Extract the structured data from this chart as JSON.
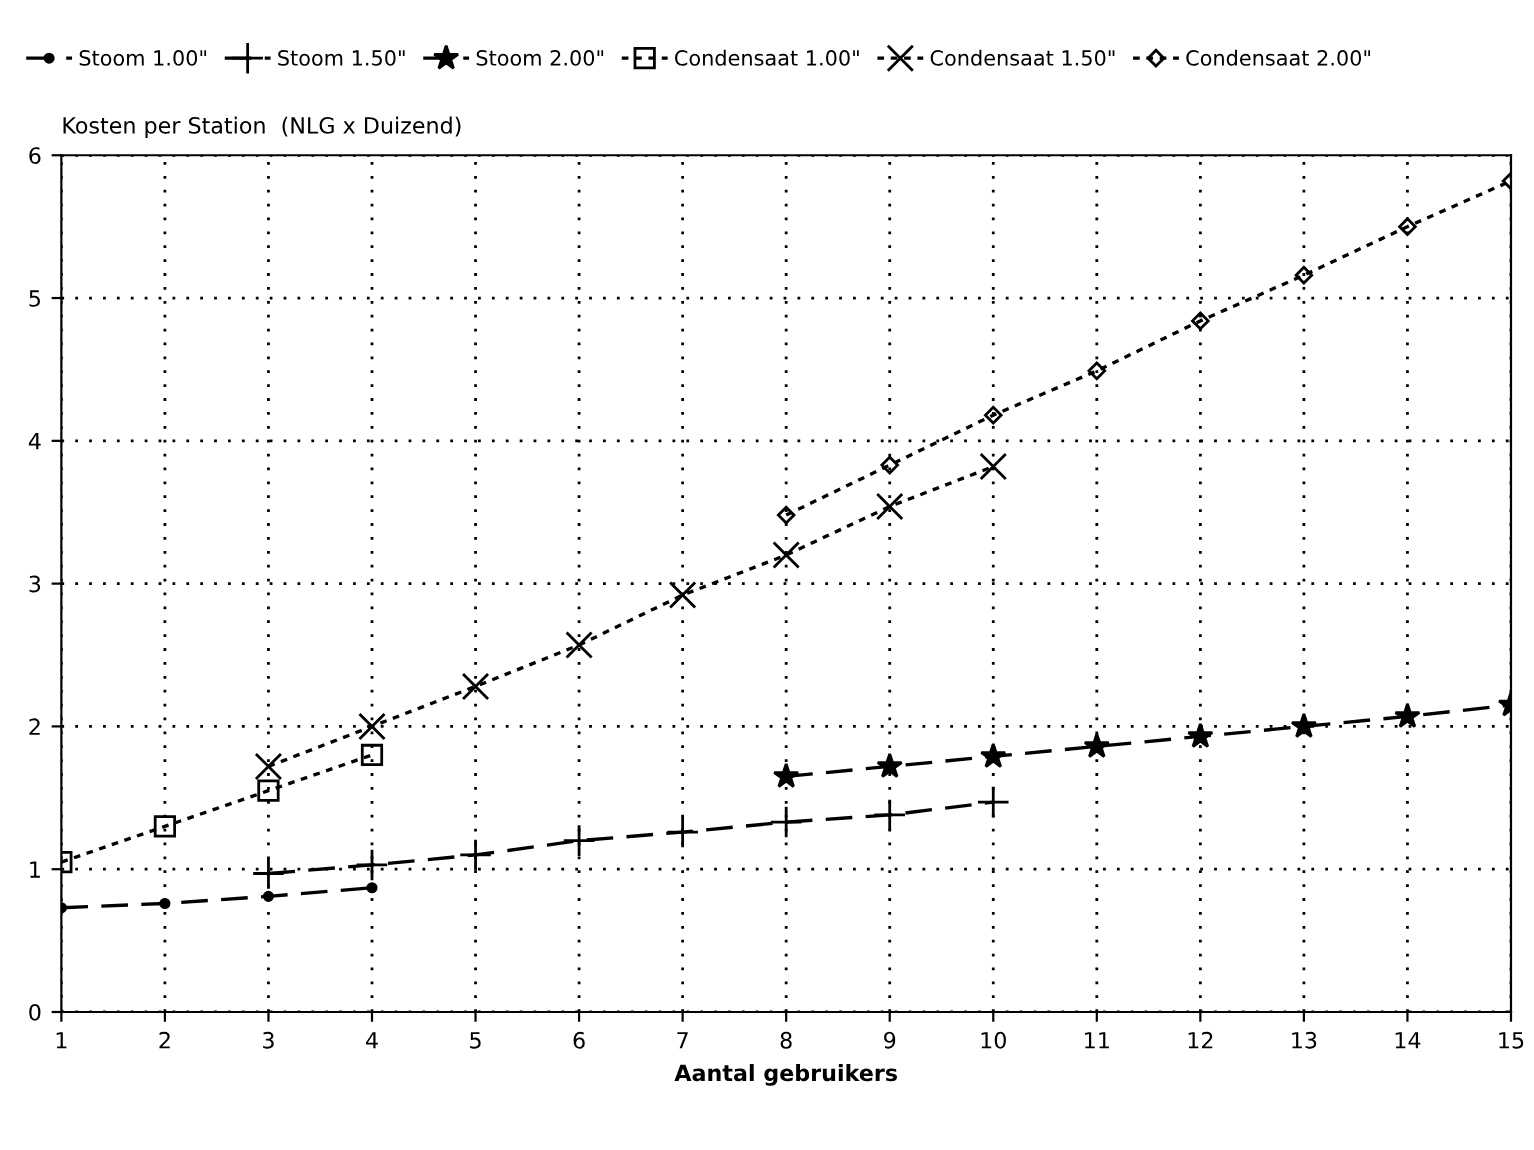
{
  "chart_data": {
    "type": "line",
    "ylabel": "Kosten per Station  (NLG x Duizend)",
    "xlabel": "Aantal gebruikers",
    "xlim": [
      1,
      15
    ],
    "xticks": [
      1,
      2,
      3,
      4,
      5,
      6,
      7,
      8,
      9,
      10,
      11,
      12,
      13,
      14,
      15
    ],
    "ylim": [
      0,
      6
    ],
    "yticks": [
      0,
      1,
      2,
      3,
      4,
      5,
      6
    ],
    "grid": true,
    "legend": "top",
    "series": [
      {
        "name": "Stoom 1.00\"",
        "color": "#000000",
        "marker": "circle",
        "line_style": "dashed",
        "x": [
          1,
          2,
          3,
          4
        ],
        "values": [
          0.73,
          0.76,
          0.81,
          0.87
        ]
      },
      {
        "name": "Stoom 1.50\"",
        "color": "#000000",
        "marker": "plus",
        "line_style": "dashed",
        "x": [
          3,
          4,
          5,
          6,
          7,
          8,
          9,
          10
        ],
        "values": [
          0.97,
          1.03,
          1.1,
          1.2,
          1.26,
          1.33,
          1.38,
          1.47
        ]
      },
      {
        "name": "Stoom 2.00\"",
        "color": "#000000",
        "marker": "star",
        "line_style": "dashed",
        "x": [
          8,
          9,
          10,
          11,
          12,
          13,
          14,
          15
        ],
        "values": [
          1.65,
          1.72,
          1.79,
          1.86,
          1.93,
          2.0,
          2.07,
          2.15
        ]
      },
      {
        "name": "Condensaat 1.00\"",
        "color": "#000000",
        "marker": "square",
        "line_style": "dotted",
        "x": [
          1,
          2,
          3,
          4
        ],
        "values": [
          1.05,
          1.3,
          1.55,
          1.8
        ]
      },
      {
        "name": "Condensaat 1.50\"",
        "color": "#000000",
        "marker": "cross",
        "line_style": "dotted",
        "x": [
          3,
          4,
          5,
          6,
          7,
          8,
          9,
          10
        ],
        "values": [
          1.72,
          2.0,
          2.28,
          2.57,
          2.92,
          3.2,
          3.54,
          3.82
        ]
      },
      {
        "name": "Condensaat 2.00\"",
        "color": "#000000",
        "marker": "diamond",
        "line_style": "dotted",
        "x": [
          8,
          9,
          10,
          11,
          12,
          13,
          14,
          15
        ],
        "values": [
          3.48,
          3.83,
          4.18,
          4.49,
          4.84,
          5.16,
          5.5,
          5.82
        ]
      }
    ]
  }
}
